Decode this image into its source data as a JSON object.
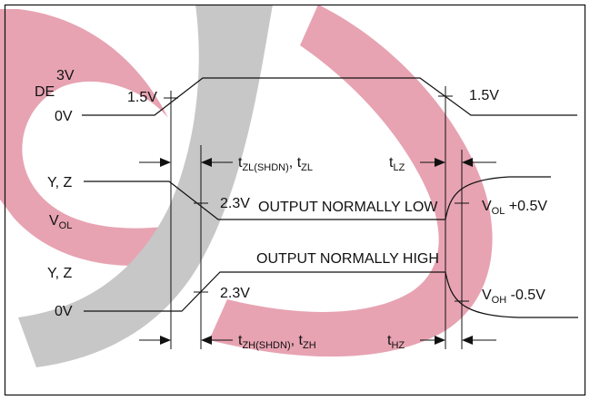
{
  "colors": {
    "watermark_red": "#e7a3b2",
    "watermark_gray": "#c7c7c7",
    "line": "#111111",
    "background": "#ffffff"
  },
  "signals": {
    "de": {
      "name": "DE",
      "high": "3V",
      "low": "0V",
      "threshold_left": "1.5V",
      "threshold_right": "1.5V"
    },
    "yz_low": {
      "name": "Y, Z",
      "bottom": "V",
      "bottom_sub": "OL",
      "threshold": "2.3V",
      "state": "OUTPUT NORMALLY LOW",
      "float": "V",
      "float_sub": "OL",
      "float_suffix": " +0.5V"
    },
    "yz_high": {
      "name": "Y, Z",
      "bottom": "0V",
      "threshold": "2.3V",
      "state": "OUTPUT NORMALLY HIGH",
      "float": "V",
      "float_sub": "OH",
      "float_suffix": " -0.5V"
    }
  },
  "timings": {
    "tzl_prefix": "t",
    "tzl_shdn_sub": "ZL(SHDN)",
    "tzl_sep": ", t",
    "tzl_sub": "ZL",
    "tlz": "t",
    "tlz_sub": "LZ",
    "tzh_prefix": "t",
    "tzh_shdn_sub": "ZH(SHDN)",
    "tzh_sep": ", t",
    "tzh_sub": "ZH",
    "thz": "t",
    "thz_sub": "HZ"
  }
}
